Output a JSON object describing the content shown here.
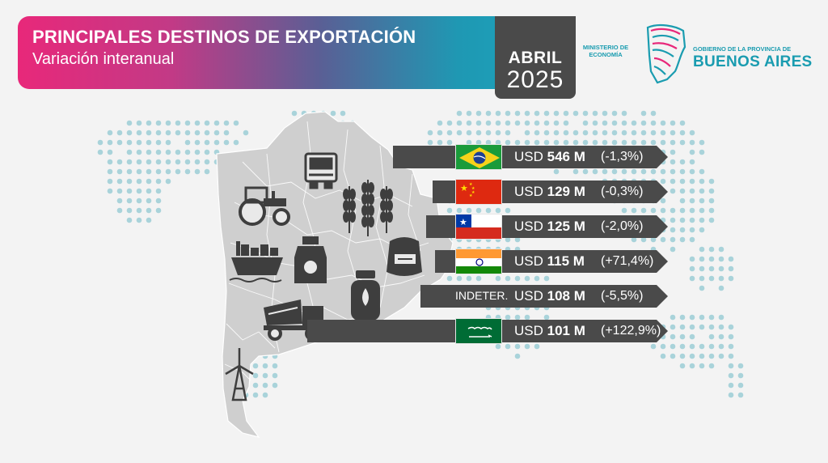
{
  "header": {
    "title": "PRINCIPALES DESTINOS DE EXPORTACIÓN",
    "subtitle": "Variación interanual",
    "month": "ABRIL",
    "year": "2025"
  },
  "logo": {
    "ministry": "MINISTERIO DE ECONOMÍA",
    "government": "GOBIERNO DE LA PROVINCIA DE",
    "province": "BUENOS AIRES"
  },
  "colors": {
    "banner_start": "#e8287a",
    "banner_end": "#1aa6bd",
    "bar": "#4a4a4a",
    "logo_teal": "#1a9cb0",
    "map_dots": "#a9d3da"
  },
  "icons": [
    "truck-icon",
    "tractor-icon",
    "wheat-icon",
    "ship-icon",
    "milk-jug-icon",
    "sack-icon",
    "gas-cylinder-icon",
    "cement-mixer-icon",
    "wind-turbine-icon"
  ],
  "destinations": [
    {
      "flag": "brazil-flag",
      "indeterminate": "",
      "currency": "USD",
      "value": "546 M",
      "change": "(-1,3%)"
    },
    {
      "flag": "china-flag",
      "indeterminate": "",
      "currency": "USD",
      "value": "129 M",
      "change": "(-0,3%)"
    },
    {
      "flag": "chile-flag",
      "indeterminate": "",
      "currency": "USD",
      "value": "125 M",
      "change": "(-2,0%)"
    },
    {
      "flag": "india-flag",
      "indeterminate": "",
      "currency": "USD",
      "value": "115 M",
      "change": "(+71,4%)"
    },
    {
      "flag": "",
      "indeterminate": "INDETER.",
      "currency": "USD",
      "value": "108 M",
      "change": "(-5,5%)"
    },
    {
      "flag": "saudi-arabia-flag",
      "indeterminate": "",
      "currency": "USD",
      "value": "101 M",
      "change": "(+122,9%)"
    }
  ]
}
